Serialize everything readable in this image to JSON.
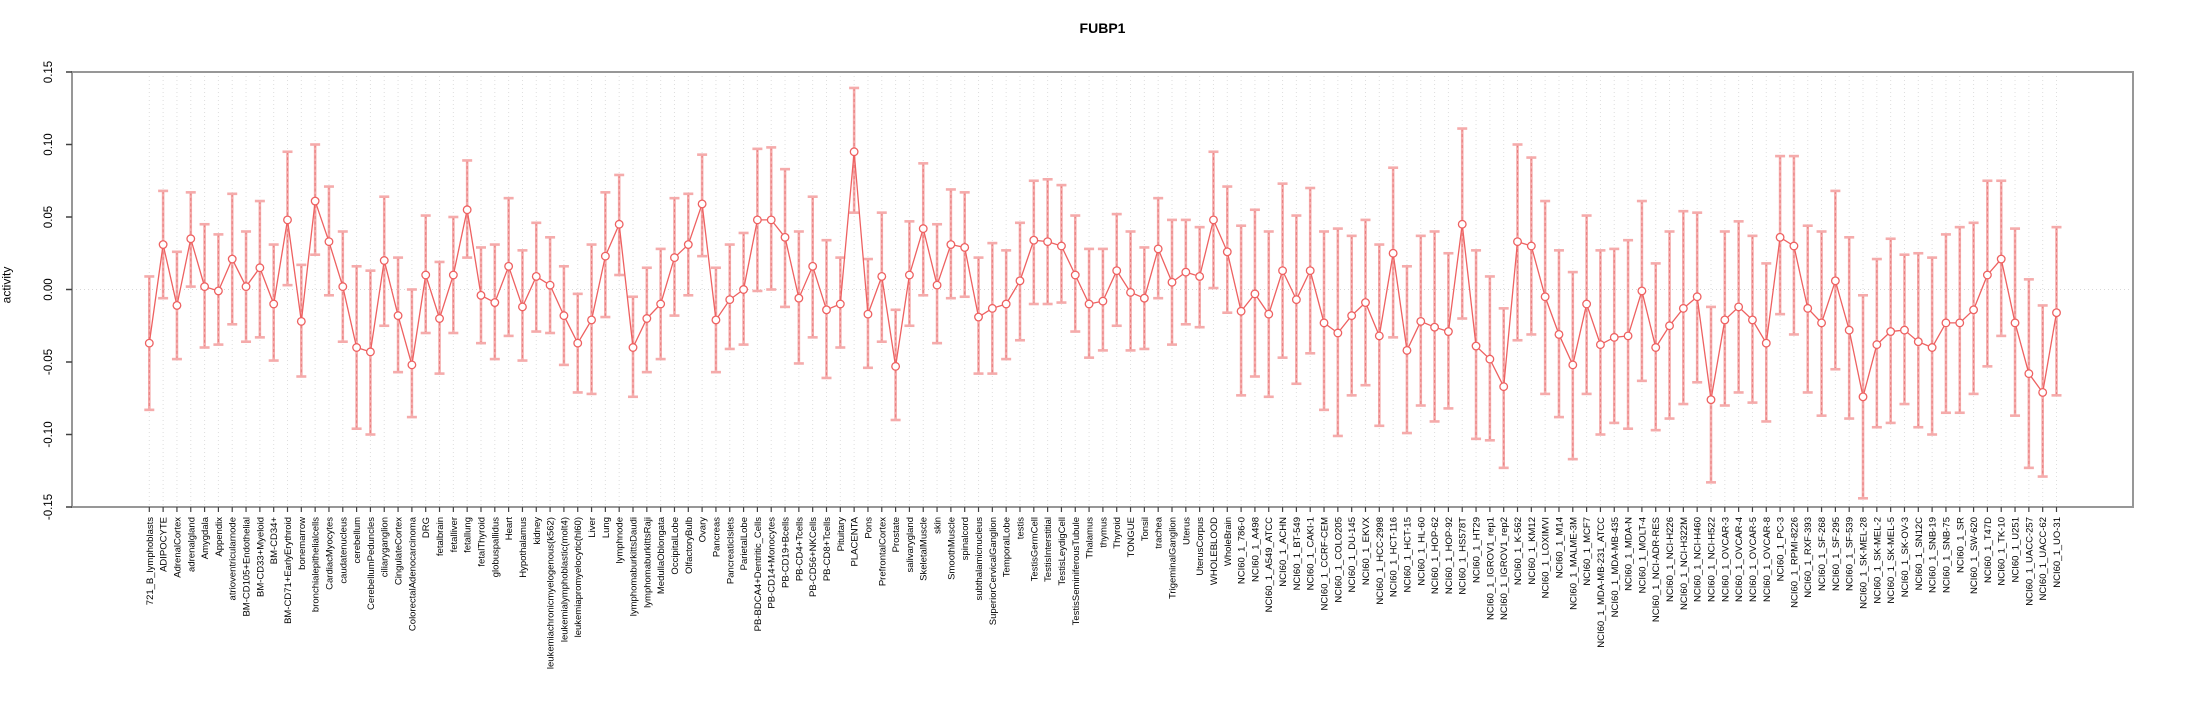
{
  "title": "FUBP1",
  "axes": {
    "y_label": "activity",
    "y_tick_labels": [
      "0.15",
      "0.10",
      "0.05",
      "0.00",
      "-0.05",
      "-0.10",
      "-0.15"
    ],
    "y_tick_values": [
      0.15,
      0.1,
      0.05,
      0.0,
      -0.05,
      -0.1,
      -0.15
    ]
  },
  "colors": {
    "series_line": "#ee6161",
    "marker_stroke": "#ee6161",
    "errorbar_stem": "#f5abab",
    "errorbar_core": "#e87d7d",
    "gridline": "#dedede",
    "zero_line": "#d8d8d8",
    "plot_border": "#979797",
    "tick": "#404040",
    "text": "#000000"
  },
  "chart_data": {
    "type": "line",
    "title": "FUBP1",
    "xlabel": "",
    "ylabel": "activity",
    "ylim": [
      -0.15,
      0.15
    ],
    "grid": "vertical dotted gridline per category; dotted horizontal line at y=0; legend none",
    "marker": "open-circle",
    "error_bars": true,
    "categories": [
      "721_B_lymphoblasts",
      "ADIPOCYTE",
      "AdrenalCortex",
      "adrenalgland",
      "Amygdala",
      "Appendix",
      "atrioventricularnode",
      "BM-CD105+Endothelial",
      "BM-CD33+Myeloid",
      "BM-CD34+",
      "BM-CD71+EarlyErythroid",
      "bonemarrow",
      "bronchialepithelialcells",
      "CardiacMyocytes",
      "caudatenucleus",
      "cerebellum",
      "CerebellumPeduncles",
      "ciliaryganglion",
      "CingulateCortex",
      "ColorectalAdenocarcinoma",
      "DRG",
      "fetalbrain",
      "fetalliver",
      "fetallung",
      "fetalThyroid",
      "globuspallidus",
      "Heart",
      "Hypothalamus",
      "kidney",
      "leukemiachronicmyelogenous(k562)",
      "leukemialymphoblastic(molt4)",
      "leukemiapromyelocytic(hl60)",
      "Liver",
      "Lung",
      "lymphnode",
      "lymphomaburkittsDaudi",
      "lymphomaburkittsRaji",
      "MedullaOblongata",
      "OccipitalLobe",
      "OlfactoryBulb",
      "Ovary",
      "Pancreas",
      "PancreaticIslets",
      "ParietalLobe",
      "PB-BDCA4+Dentritic_Cells",
      "PB-CD14+Monocytes",
      "PB-CD19+Bcells",
      "PB-CD4+Tcells",
      "PB-CD56+NKCells",
      "PB-CD8+Tcells",
      "Pituitary",
      "PLACENTA",
      "Pons",
      "PrefrontalCortex",
      "Prostate",
      "salivarygland",
      "SkeletalMuscle",
      "skin",
      "SmoothMuscle",
      "spinalcord",
      "subthalamicnucleus",
      "SuperiorCervicalGanglion",
      "TemporalLobe",
      "testis",
      "TestisGermCell",
      "TestisInterstitial",
      "TestisLeydigCell",
      "TestisSeminiferousTubule",
      "Thalamus",
      "thymus",
      "Thyroid",
      "TONGUE",
      "Tonsil",
      "trachea",
      "TrigeminalGanglion",
      "Uterus",
      "UterusCorpus",
      "WHOLEBLOOD",
      "WholeBrain",
      "NCI60_1_786-0",
      "NCI60_1_A498",
      "NCI60_1_A549_ATCC",
      "NCI60_1_ACHN",
      "NCI60_1_BT-549",
      "NCI60_1_CAKI-1",
      "NCI60_1_CCRF-CEM",
      "NCI60_1_COLO205",
      "NCI60_1_DU-145",
      "NCI60_1_EKVX",
      "NCI60_1_HCC-2998",
      "NCI60_1_HCT-116",
      "NCI60_1_HCT-15",
      "NCI60_1_HL-60",
      "NCI60_1_HOP-62",
      "NCI60_1_HOP-92",
      "NCI60_1_HS578T",
      "NCI60_1_HT29",
      "NCI60_1_IGROV1_rep1",
      "NCI60_1_IGROV1_rep2",
      "NCI60_1_K-562",
      "NCI60_1_KM12",
      "NCI60_1_LOXIMVI",
      "NCI60_1_M14",
      "NCI60_1_MALME-3M",
      "NCI60_1_MCF7",
      "NCI60_1_MDA-MB-231_ATCC",
      "NCI60_1_MDA-MB-435",
      "NCI60_1_MDA-N",
      "NCI60_1_MOLT-4",
      "NCI60_1_NCI-ADR-RES",
      "NCI60_1_NCI-H226",
      "NCI60_1_NCI-H322M",
      "NCI60_1_NCI-H460",
      "NCI60_1_NCI-H522",
      "NCI60_1_OVCAR-3",
      "NCI60_1_OVCAR-4",
      "NCI60_1_OVCAR-5",
      "NCI60_1_OVCAR-8",
      "NCI60_1_PC-3",
      "NCI60_1_RPMI-8226",
      "NCI60_1_RXF-393",
      "NCI60_1_SF-268",
      "NCI60_1_SF-295",
      "NCI60_1_SF-539",
      "NCI60_1_SK-MEL-28",
      "NCI60_1_SK-MEL-2",
      "NCI60_1_SK-MEL-5",
      "NCI60_1_SK-OV-3",
      "NCI60_1_SN12C",
      "NCI60_1_SNB-19",
      "NCI60_1_SNB-75",
      "NCI60_1_SR",
      "NCI60_1_SW-620",
      "NCI60_1_T47D",
      "NCI60_1_TK-10",
      "NCI60_1_U251",
      "NCI60_1_UACC-257",
      "NCI60_1_UACC-62",
      "NCI60_1_UO-31"
    ],
    "series": [
      {
        "name": "activity",
        "values": [
          -0.037,
          0.031,
          -0.011,
          0.035,
          0.002,
          -0.001,
          0.021,
          0.002,
          0.015,
          -0.01,
          0.048,
          -0.022,
          0.061,
          0.033,
          0.002,
          -0.04,
          -0.043,
          0.02,
          -0.018,
          -0.052,
          0.01,
          -0.02,
          0.01,
          0.055,
          -0.004,
          -0.009,
          0.016,
          -0.012,
          0.009,
          0.003,
          -0.018,
          -0.037,
          -0.021,
          0.023,
          0.045,
          -0.04,
          -0.02,
          -0.01,
          0.022,
          0.031,
          0.059,
          -0.021,
          -0.007,
          0.0,
          0.048,
          0.048,
          0.036,
          -0.006,
          0.016,
          -0.014,
          -0.01,
          0.095,
          -0.017,
          0.009,
          -0.053,
          0.01,
          0.042,
          0.003,
          0.031,
          0.029,
          -0.019,
          -0.013,
          -0.01,
          0.006,
          0.034,
          0.033,
          0.03,
          0.01,
          -0.01,
          -0.008,
          0.013,
          -0.002,
          -0.006,
          0.028,
          0.005,
          0.012,
          0.009,
          0.048,
          0.026,
          -0.015,
          -0.003,
          -0.017,
          0.013,
          -0.007,
          0.013,
          -0.023,
          -0.03,
          -0.018,
          -0.009,
          -0.032,
          0.025,
          -0.042,
          -0.022,
          -0.026,
          -0.029,
          0.045,
          -0.039,
          -0.048,
          -0.067,
          0.033,
          0.03,
          -0.005,
          -0.031,
          -0.052,
          -0.01,
          -0.038,
          -0.033,
          -0.032,
          -0.001,
          -0.04,
          -0.025,
          -0.013,
          -0.005,
          -0.076,
          -0.021,
          -0.012,
          -0.021,
          -0.037,
          0.036,
          0.03,
          -0.013,
          -0.023,
          0.006,
          -0.028,
          -0.074,
          -0.038,
          -0.029,
          -0.028,
          -0.036,
          -0.04,
          -0.023,
          -0.023,
          -0.014,
          0.01,
          0.021,
          -0.023,
          -0.058,
          -0.071,
          -0.016
        ],
        "error_low": [
          -0.083,
          -0.006,
          -0.048,
          0.002,
          -0.04,
          -0.038,
          -0.024,
          -0.036,
          -0.033,
          -0.049,
          0.003,
          -0.06,
          0.024,
          -0.004,
          -0.036,
          -0.096,
          -0.1,
          -0.025,
          -0.057,
          -0.088,
          -0.03,
          -0.058,
          -0.03,
          0.022,
          -0.037,
          -0.048,
          -0.032,
          -0.049,
          -0.029,
          -0.03,
          -0.052,
          -0.071,
          -0.072,
          -0.019,
          0.01,
          -0.074,
          -0.057,
          -0.048,
          -0.018,
          -0.004,
          0.023,
          -0.057,
          -0.041,
          -0.038,
          -0.001,
          0.0,
          -0.012,
          -0.051,
          -0.033,
          -0.061,
          -0.04,
          0.053,
          -0.054,
          -0.036,
          -0.09,
          -0.025,
          -0.004,
          -0.037,
          -0.006,
          -0.005,
          -0.058,
          -0.058,
          -0.048,
          -0.035,
          -0.01,
          -0.01,
          -0.009,
          -0.029,
          -0.047,
          -0.042,
          -0.025,
          -0.042,
          -0.041,
          -0.006,
          -0.038,
          -0.024,
          -0.026,
          0.001,
          -0.016,
          -0.073,
          -0.06,
          -0.074,
          -0.047,
          -0.065,
          -0.044,
          -0.083,
          -0.101,
          -0.073,
          -0.066,
          -0.094,
          -0.033,
          -0.099,
          -0.08,
          -0.091,
          -0.082,
          -0.02,
          -0.103,
          -0.104,
          -0.123,
          -0.035,
          -0.031,
          -0.072,
          -0.088,
          -0.117,
          -0.072,
          -0.1,
          -0.092,
          -0.096,
          -0.063,
          -0.097,
          -0.089,
          -0.079,
          -0.064,
          -0.133,
          -0.08,
          -0.071,
          -0.078,
          -0.091,
          -0.017,
          -0.031,
          -0.071,
          -0.087,
          -0.055,
          -0.089,
          -0.144,
          -0.095,
          -0.092,
          -0.079,
          -0.095,
          -0.1,
          -0.085,
          -0.085,
          -0.072,
          -0.053,
          -0.032,
          -0.087,
          -0.123,
          -0.129,
          -0.073
        ],
        "error_high": [
          0.009,
          0.068,
          0.026,
          0.067,
          0.045,
          0.038,
          0.066,
          0.04,
          0.061,
          0.031,
          0.095,
          0.017,
          0.1,
          0.071,
          0.04,
          0.016,
          0.013,
          0.064,
          0.022,
          0.0,
          0.051,
          0.019,
          0.05,
          0.089,
          0.029,
          0.031,
          0.063,
          0.027,
          0.046,
          0.036,
          0.016,
          -0.003,
          0.031,
          0.067,
          0.079,
          -0.005,
          0.015,
          0.028,
          0.063,
          0.066,
          0.093,
          0.015,
          0.031,
          0.039,
          0.097,
          0.098,
          0.083,
          0.04,
          0.064,
          0.034,
          0.022,
          0.139,
          0.021,
          0.053,
          -0.014,
          0.047,
          0.087,
          0.045,
          0.069,
          0.067,
          0.022,
          0.032,
          0.027,
          0.046,
          0.075,
          0.076,
          0.072,
          0.051,
          0.028,
          0.028,
          0.052,
          0.04,
          0.029,
          0.063,
          0.048,
          0.048,
          0.043,
          0.095,
          0.071,
          0.044,
          0.055,
          0.04,
          0.073,
          0.051,
          0.07,
          0.04,
          0.042,
          0.037,
          0.048,
          0.031,
          0.084,
          0.016,
          0.037,
          0.04,
          0.025,
          0.111,
          0.027,
          0.009,
          -0.013,
          0.1,
          0.091,
          0.061,
          0.027,
          0.012,
          0.051,
          0.027,
          0.028,
          0.034,
          0.061,
          0.018,
          0.04,
          0.054,
          0.053,
          -0.012,
          0.04,
          0.047,
          0.037,
          0.018,
          0.092,
          0.092,
          0.044,
          0.04,
          0.068,
          0.036,
          -0.004,
          0.021,
          0.035,
          0.024,
          0.025,
          0.022,
          0.038,
          0.043,
          0.046,
          0.075,
          0.075,
          0.042,
          0.007,
          -0.011,
          0.043
        ]
      }
    ]
  }
}
